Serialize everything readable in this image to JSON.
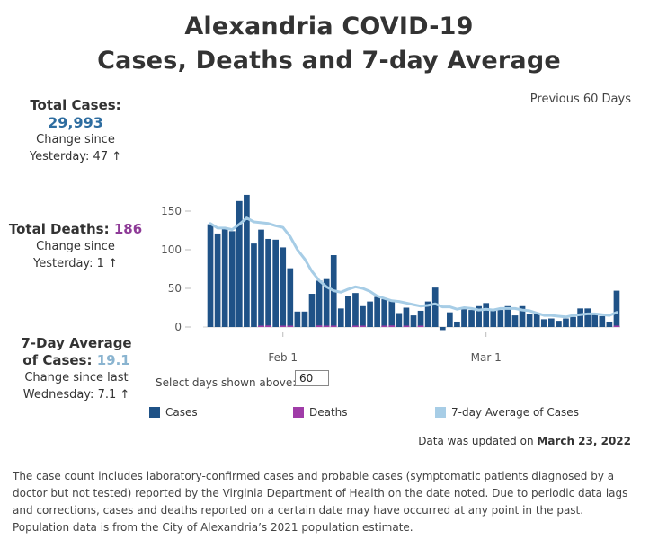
{
  "title_line1": "Alexandria COVID-19",
  "title_line2": "Cases, Deaths and 7-day Average",
  "stats": {
    "total_cases": {
      "label": "Total Cases:",
      "value": "29,993",
      "change_label": "Change since",
      "change_text": "Yesterday: 47 ↑"
    },
    "total_deaths": {
      "label": "Total Deaths:",
      "value": "186",
      "change_label": "Change since",
      "change_text": "Yesterday: 1 ↑"
    },
    "avg": {
      "label_line1": "7-Day Average",
      "label_line2": "of Cases:",
      "value": "19.1",
      "change_label": "Change since last",
      "change_text": "Wednesday: 7.1 ↑"
    }
  },
  "colors": {
    "cases": "#1f5287",
    "deaths": "#a03ca8",
    "average": "#a7cde6",
    "cases_value": "#2e6da0",
    "deaths_value": "#8e3b97",
    "avg_value": "#8ab4d0"
  },
  "period_label": "Previous 60 Days",
  "select": {
    "label": "Select days shown above:",
    "value": "60"
  },
  "legend": {
    "cases": "Cases",
    "deaths": "Deaths",
    "average": "7-day Average of Cases"
  },
  "updated": {
    "prefix": "Data was updated on ",
    "date": "March 23, 2022"
  },
  "note": "The case count includes laboratory-confirmed cases and probable cases (symptomatic patients diagnosed by a doctor but not tested) reported by the Virginia Department of Health on the date noted. Due to periodic data lags and  corrections, cases and deaths reported on a certain date may have occurred at any point in the past. Population data is from the City of Alexandria’s 2021 population estimate.",
  "chart_data": {
    "type": "bar",
    "x_start": "2022-01-22",
    "x_ticks": [
      {
        "label": "Feb 1",
        "date": "2022-02-01"
      },
      {
        "label": "Mar 1",
        "date": "2022-03-01"
      }
    ],
    "ylim": [
      -10,
      165
    ],
    "y_ticks": [
      0,
      50,
      100,
      150
    ],
    "grid": false,
    "series": [
      {
        "name": "Cases",
        "type": "bar",
        "values": [
          133,
          121,
          127,
          124,
          163,
          171,
          108,
          126,
          114,
          113,
          103,
          76,
          20,
          20,
          43,
          60,
          62,
          93,
          24,
          40,
          44,
          27,
          33,
          39,
          36,
          34,
          18,
          25,
          15,
          21,
          33,
          51,
          -4,
          19,
          7,
          23,
          22,
          27,
          31,
          22,
          22,
          27,
          15,
          27,
          17,
          17,
          10,
          11,
          8,
          11,
          13,
          24,
          24,
          16,
          14,
          7,
          47
        ]
      },
      {
        "name": "Deaths",
        "type": "bar",
        "values": [
          0,
          0,
          0,
          0,
          0,
          0,
          0,
          1,
          2,
          0,
          1,
          1,
          0,
          0,
          0,
          2,
          1,
          1,
          0,
          0,
          1,
          1,
          0,
          0,
          1,
          2,
          0,
          1,
          0,
          1,
          0,
          0,
          0,
          0,
          0,
          0,
          0,
          0,
          0,
          0,
          0,
          0,
          0,
          0,
          0,
          0,
          0,
          0,
          0,
          0,
          0,
          0,
          0,
          0,
          0,
          0,
          1
        ]
      },
      {
        "name": "7-day Average of Cases",
        "type": "line",
        "values": [
          134,
          128,
          128,
          126,
          133,
          141,
          136,
          135,
          134,
          131,
          129,
          117,
          100,
          88,
          72,
          60,
          52,
          47,
          45,
          49,
          52,
          50,
          46,
          40,
          37,
          34,
          33,
          31,
          29,
          27,
          28,
          30,
          26,
          26,
          23,
          25,
          24,
          22,
          23,
          22,
          24,
          24,
          24,
          22,
          21,
          18,
          15,
          15,
          14,
          13,
          15,
          16,
          17,
          17,
          16,
          15,
          19
        ]
      }
    ]
  }
}
